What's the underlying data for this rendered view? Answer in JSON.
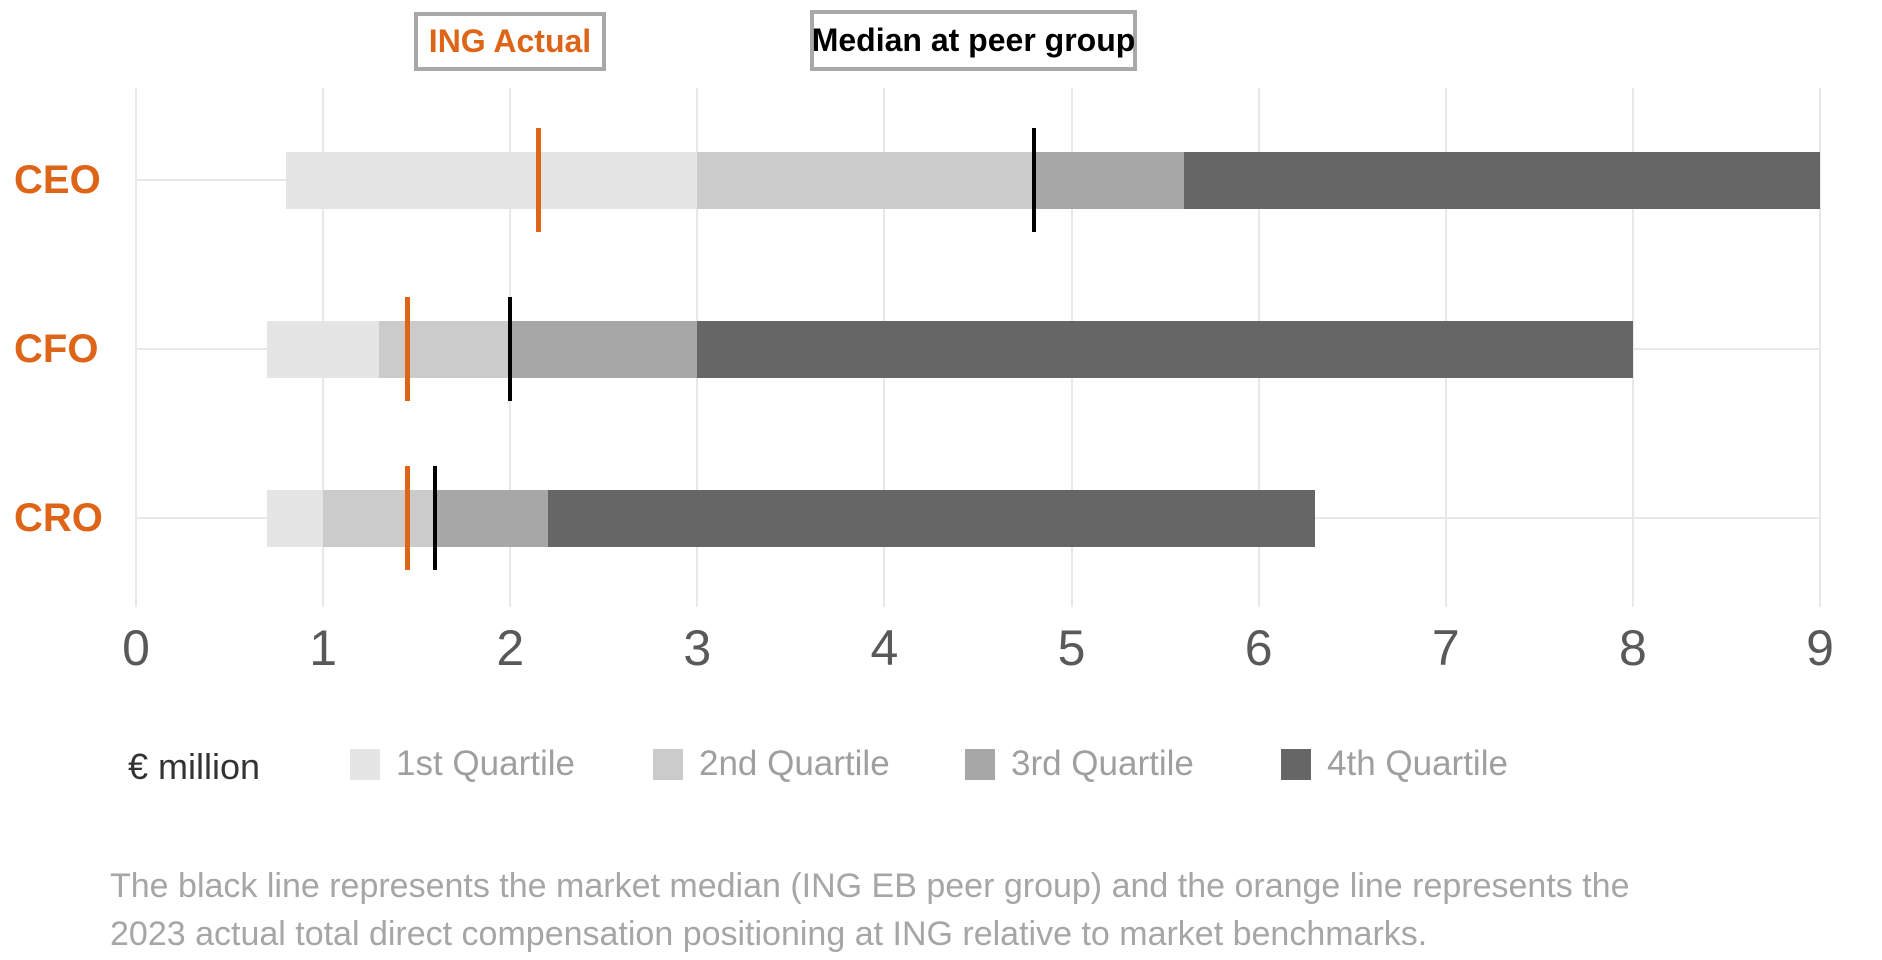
{
  "top_legend": {
    "ing_actual_label": "ING Actual",
    "peer_median_label": "Median at peer group"
  },
  "chart_data": {
    "type": "bar",
    "orientation": "horizontal-stacked-range",
    "title": "",
    "unit_label": "€ million",
    "categories": [
      "CEO",
      "CFO",
      "CRO"
    ],
    "xlim": [
      0,
      9
    ],
    "xticks": [
      0,
      1,
      2,
      3,
      4,
      5,
      6,
      7,
      8,
      9
    ],
    "grid": true,
    "legend_position": "bottom",
    "series": [
      {
        "name": "1st Quartile",
        "color": "#e5e5e5",
        "ranges": [
          [
            0.8,
            3.0
          ],
          [
            0.7,
            1.3
          ],
          [
            0.7,
            1.0
          ]
        ]
      },
      {
        "name": "2nd Quartile",
        "color": "#cbcbcb",
        "ranges": [
          [
            3.0,
            4.8
          ],
          [
            1.3,
            2.0
          ],
          [
            1.0,
            1.6
          ]
        ]
      },
      {
        "name": "3rd Quartile",
        "color": "#a7a7a7",
        "ranges": [
          [
            4.8,
            5.6
          ],
          [
            2.0,
            3.0
          ],
          [
            1.6,
            2.2
          ]
        ]
      },
      {
        "name": "4th Quartile",
        "color": "#666666",
        "ranges": [
          [
            5.6,
            9.0
          ],
          [
            3.0,
            8.0
          ],
          [
            2.2,
            6.3
          ]
        ]
      }
    ],
    "markers": {
      "ing_actual": {
        "label": "ING Actual",
        "color": "#de6418",
        "values": [
          2.15,
          1.45,
          1.45
        ]
      },
      "peer_median": {
        "label": "Median at peer group",
        "color": "#000000",
        "values": [
          4.8,
          2.0,
          1.6
        ]
      }
    }
  },
  "bottom_legend": {
    "unit_label": "€ million",
    "items": [
      "1st Quartile",
      "2nd Quartile",
      "3rd Quartile",
      "4th Quartile"
    ]
  },
  "footnote": {
    "line1": "The black line represents the market median (ING EB peer group) and the orange line represents the",
    "line2": "2023 actual total direct compensation positioning at ING relative to market benchmarks."
  },
  "colors": {
    "accent_orange": "#de6418",
    "grid": "#e8e8e8",
    "tick_label": "#595959",
    "legend_text": "#9f9f9f",
    "footnote_text": "#a6a6a6",
    "box_border": "#a8a8a8"
  }
}
